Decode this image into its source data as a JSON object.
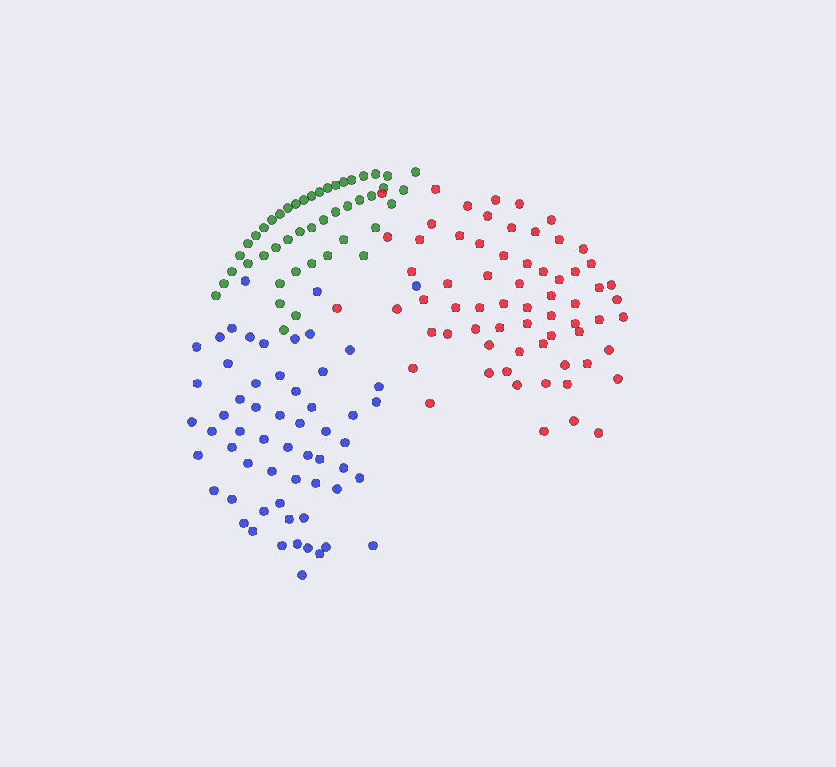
{
  "chart_data": {
    "type": "scatter",
    "xlim": [
      -5.23,
      5.23
    ],
    "ylim": [
      -4.8,
      4.8
    ],
    "grid": false,
    "series": [
      {
        "color": "#1f8a1f",
        "x": [
          -2.53,
          -2.43,
          -2.33,
          -2.23,
          -2.13,
          -2.03,
          -1.93,
          -1.83,
          -1.73,
          -1.63,
          -1.53,
          -1.43,
          -1.33,
          -1.23,
          -1.13,
          -1.03,
          -0.93,
          -0.83,
          -0.68,
          -0.53,
          -0.38,
          -0.03,
          -2.13,
          -1.93,
          -1.78,
          -1.63,
          -1.48,
          -1.33,
          -1.18,
          -1.03,
          -0.88,
          -0.73,
          -0.58,
          -0.43,
          -1.73,
          -1.53,
          -1.33,
          -1.13,
          -0.93,
          -0.68,
          -0.53,
          -0.33,
          -0.18,
          -1.73,
          -1.53,
          -1.68
        ],
        "values": [
          1.1,
          1.25,
          1.4,
          1.6,
          1.75,
          1.85,
          1.95,
          2.05,
          2.12,
          2.2,
          2.25,
          2.3,
          2.35,
          2.4,
          2.45,
          2.48,
          2.52,
          2.55,
          2.6,
          2.62,
          2.6,
          2.65,
          1.5,
          1.6,
          1.7,
          1.8,
          1.9,
          1.95,
          2.05,
          2.15,
          2.22,
          2.3,
          2.35,
          2.45,
          1.25,
          1.4,
          1.5,
          1.6,
          1.8,
          1.6,
          1.95,
          2.25,
          2.42,
          1.0,
          0.85,
          0.67
        ]
      },
      {
        "color": "#ec1020",
        "x": [
          0.22,
          0.62,
          0.97,
          1.27,
          0.87,
          1.17,
          1.47,
          1.67,
          1.77,
          2.07,
          2.17,
          1.97,
          1.77,
          1.57,
          1.37,
          1.07,
          0.77,
          0.52,
          0.17,
          -0.38,
          0.02,
          -0.08,
          0.37,
          0.87,
          1.27,
          1.67,
          1.97,
          2.27,
          2.42,
          2.49,
          2.57,
          2.27,
          1.97,
          1.67,
          1.37,
          1.07,
          0.77,
          0.47,
          0.07,
          -0.26,
          0.17,
          0.37,
          0.72,
          1.02,
          1.37,
          1.67,
          2.02,
          2.39,
          2.12,
          1.84,
          1.57,
          1.27,
          0.89,
          0.89,
          1.11,
          1.24,
          1.6,
          1.87,
          2.5,
          1.95,
          2.26,
          1.58,
          0.15,
          -0.06,
          -1.01,
          -0.45
        ],
        "values": [
          2.43,
          2.22,
          2.3,
          2.25,
          2.1,
          1.95,
          1.9,
          2.05,
          1.8,
          1.68,
          1.5,
          1.4,
          1.3,
          1.4,
          1.5,
          1.6,
          1.75,
          1.85,
          2.0,
          1.83,
          1.8,
          1.4,
          1.25,
          1.35,
          1.25,
          1.1,
          1.0,
          1.2,
          1.23,
          1.05,
          0.83,
          0.8,
          0.75,
          0.85,
          0.95,
          1.0,
          0.95,
          0.95,
          1.05,
          0.93,
          0.64,
          0.62,
          0.68,
          0.7,
          0.75,
          0.6,
          0.65,
          0.42,
          0.25,
          0.23,
          0.5,
          0.4,
          0.48,
          0.13,
          0.15,
          -0.02,
          0.0,
          -0.01,
          0.06,
          -0.47,
          -0.62,
          -0.6,
          -0.25,
          0.19,
          0.94,
          2.38
        ]
      },
      {
        "color": "#1a2ee6",
        "x": [
          -2.48,
          -2.33,
          -2.1,
          -1.93,
          -1.54,
          -1.35,
          -1.26,
          -2.16,
          -0.85,
          -1.19,
          -0.49,
          -0.52,
          -0.81,
          -0.91,
          -0.73,
          -1.01,
          -0.93,
          -1.15,
          -1.33,
          -1.53,
          -1.73,
          -2.03,
          -2.23,
          -2.43,
          -2.58,
          -2.77,
          -2.76,
          -2.83,
          -2.75,
          -2.55,
          -2.33,
          -2.18,
          -2.07,
          -1.93,
          -1.73,
          -1.61,
          -1.43,
          -1.7,
          -1.51,
          -1.38,
          -1.23,
          -1.15,
          -1.45,
          -0.56,
          -1.28,
          -1.53,
          -1.83,
          -2.13,
          -2.33,
          -2.23,
          -1.93,
          -1.63,
          -1.38,
          -1.23,
          -1.73,
          -1.48,
          -2.03,
          -2.38,
          -0.02
        ],
        "values": [
          0.58,
          0.69,
          0.58,
          0.5,
          0.56,
          0.62,
          1.15,
          1.28,
          0.42,
          0.15,
          -0.04,
          -0.23,
          -0.4,
          -0.74,
          -1.18,
          -1.32,
          -1.06,
          -0.6,
          -0.3,
          -0.1,
          0.1,
          0.0,
          -0.2,
          -0.4,
          -0.6,
          0.46,
          0.0,
          -0.48,
          -0.9,
          -1.34,
          -1.45,
          -1.75,
          -1.85,
          -1.6,
          -1.5,
          -1.7,
          -1.68,
          -2.03,
          -2.01,
          -2.06,
          -2.13,
          -2.05,
          -2.4,
          -2.03,
          -1.25,
          -1.2,
          -1.1,
          -1.0,
          -0.8,
          -0.6,
          -0.7,
          -0.8,
          -0.9,
          -0.95,
          -0.4,
          -0.5,
          -0.3,
          0.25,
          1.22
        ]
      }
    ]
  }
}
